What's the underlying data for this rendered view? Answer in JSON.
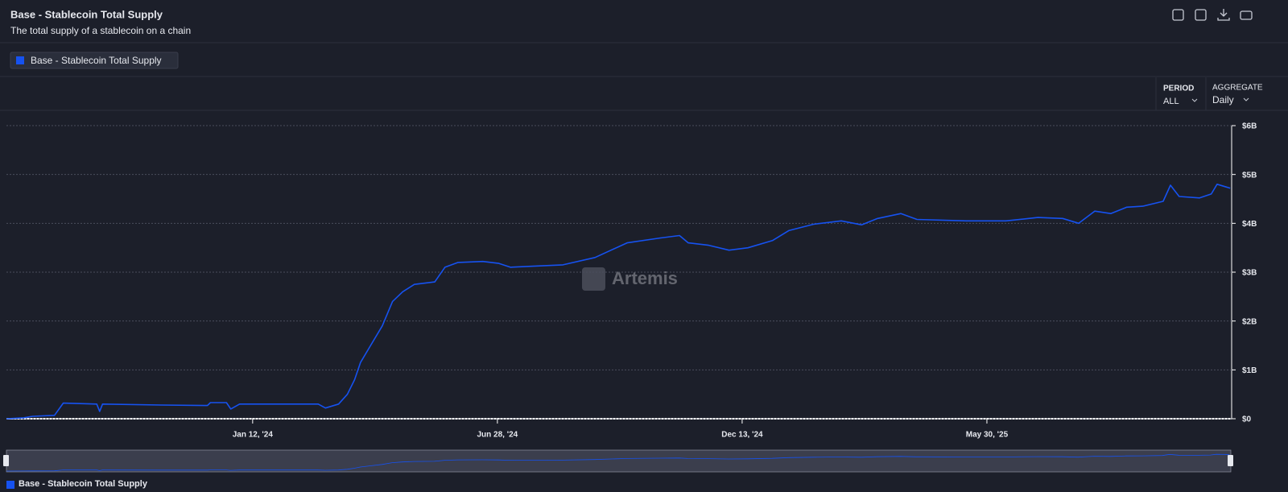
{
  "chart_data": {
    "type": "line",
    "title": "Base - Stablecoin Total Supply",
    "subtitle": "The total supply of a stablecoin on a chain",
    "watermark": "Artemis",
    "x": [
      "2023-07-27",
      "2023-08-08",
      "2023-08-14",
      "2023-08-29",
      "2023-09-04",
      "2023-09-27",
      "2023-09-29",
      "2023-10-01",
      "2023-11-10",
      "2023-12-12",
      "2023-12-14",
      "2023-12-25",
      "2023-12-28",
      "2024-01-03",
      "2024-02-26",
      "2024-03-02",
      "2024-03-11",
      "2024-03-17",
      "2024-03-22",
      "2024-03-26",
      "2024-04-02",
      "2024-04-10",
      "2024-04-17",
      "2024-04-24",
      "2024-05-02",
      "2024-05-16",
      "2024-05-23",
      "2024-06-01",
      "2024-06-18",
      "2024-06-29",
      "2024-07-07",
      "2024-07-21",
      "2024-08-12",
      "2024-09-03",
      "2024-09-25",
      "2024-10-18",
      "2024-10-31",
      "2024-11-06",
      "2024-11-20",
      "2024-12-04",
      "2024-12-17",
      "2025-01-03",
      "2025-01-14",
      "2025-01-31",
      "2025-02-19",
      "2025-03-05",
      "2025-03-16",
      "2025-04-01",
      "2025-04-12",
      "2025-05-16",
      "2025-06-12",
      "2025-07-04",
      "2025-07-21",
      "2025-08-01",
      "2025-08-12",
      "2025-08-23",
      "2025-09-03",
      "2025-09-14",
      "2025-09-28",
      "2025-10-03",
      "2025-10-09",
      "2025-10-23",
      "2025-10-31",
      "2025-11-04",
      "2025-11-13"
    ],
    "series": [
      {
        "name": "Base - Stablecoin Total Supply",
        "color": "#1652f0",
        "values": [
          0,
          0.02,
          0.05,
          0.07,
          0.32,
          0.3,
          0.15,
          0.3,
          0.28,
          0.27,
          0.33,
          0.33,
          0.2,
          0.3,
          0.3,
          0.22,
          0.3,
          0.5,
          0.8,
          1.15,
          1.5,
          1.9,
          2.4,
          2.6,
          2.75,
          2.8,
          3.1,
          3.2,
          3.22,
          3.18,
          3.1,
          3.12,
          3.15,
          3.3,
          3.6,
          3.7,
          3.75,
          3.6,
          3.55,
          3.45,
          3.5,
          3.65,
          3.85,
          3.98,
          4.05,
          3.97,
          4.1,
          4.2,
          4.08,
          4.05,
          4.05,
          4.12,
          4.1,
          4.0,
          4.25,
          4.2,
          4.33,
          4.35,
          4.45,
          4.78,
          4.55,
          4.52,
          4.6,
          4.8,
          4.72
        ]
      }
    ],
    "xlim": [
      "2023-07-27",
      "2025-11-14"
    ],
    "xticks": [
      {
        "value": "2024-01-12",
        "label": "Jan 12, '24"
      },
      {
        "value": "2024-06-28",
        "label": "Jun 28, '24"
      },
      {
        "value": "2024-12-13",
        "label": "Dec 13, '24"
      },
      {
        "value": "2025-05-30",
        "label": "May 30, '25"
      }
    ],
    "ylim": [
      0,
      6
    ],
    "yticks": [
      {
        "value": 0,
        "label": "$0"
      },
      {
        "value": 1,
        "label": "$1B"
      },
      {
        "value": 2,
        "label": "$2B"
      },
      {
        "value": 3,
        "label": "$3B"
      },
      {
        "value": 4,
        "label": "$4B"
      },
      {
        "value": 5,
        "label": "$5B"
      },
      {
        "value": 6,
        "label": "$6B"
      }
    ],
    "grid": true
  },
  "toolbar": {
    "period_label": "PERIOD",
    "period": "ALL",
    "aggregate_label": "AGGREGATE",
    "aggregate": "Daily"
  }
}
